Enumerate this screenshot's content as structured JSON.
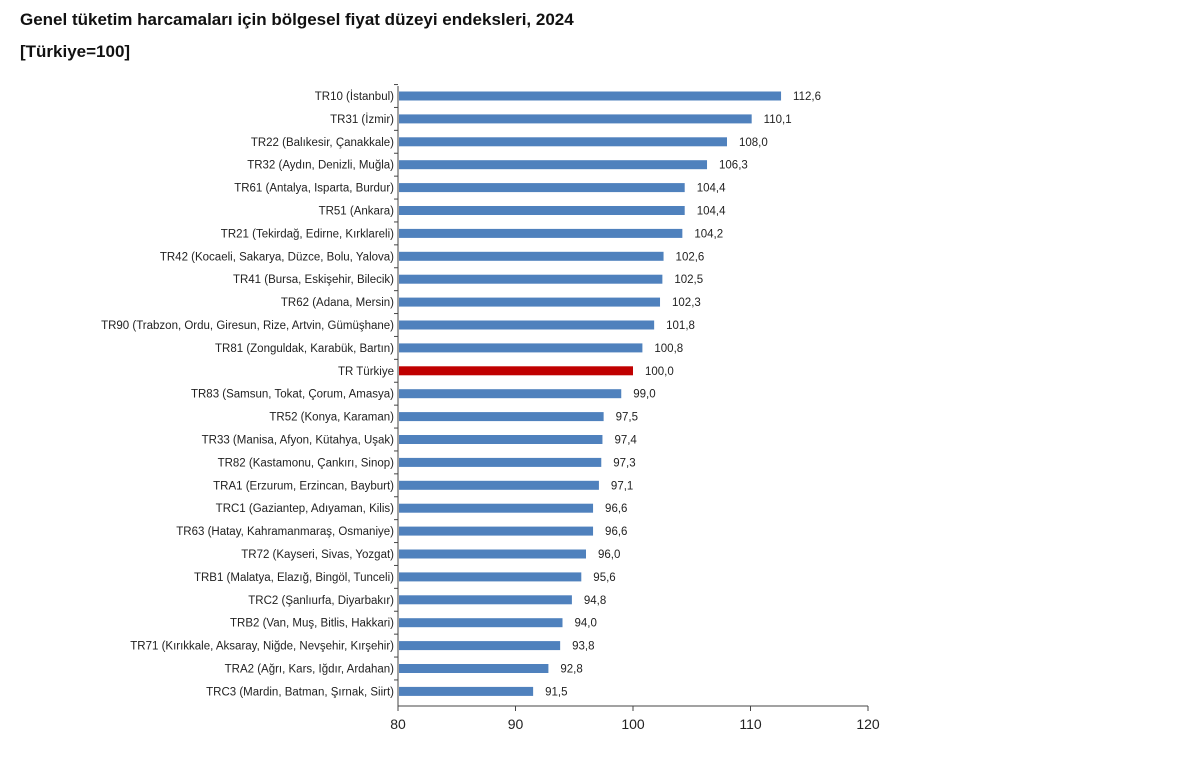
{
  "chart_data": {
    "type": "bar",
    "orientation": "horizontal",
    "title": "Genel tüketim harcamaları için bölgesel fiyat düzeyi endeksleri, 2024",
    "subtitle": "[Türkiye=100]",
    "xlabel": "",
    "ylabel": "",
    "xlim": [
      80,
      120
    ],
    "xticks": [
      80,
      90,
      100,
      110,
      120
    ],
    "grid": false,
    "colors": {
      "bar": "#4f81bd",
      "highlight": "#c00000"
    },
    "highlight_category": "TR Türkiye",
    "categories": [
      "TR10 (İstanbul)",
      "TR31 (İzmir)",
      "TR22 (Balıkesir, Çanakkale)",
      "TR32 (Aydın, Denizli, Muğla)",
      "TR61 (Antalya, Isparta, Burdur)",
      "TR51 (Ankara)",
      "TR21 (Tekirdağ, Edirne, Kırklareli)",
      "TR42 (Kocaeli, Sakarya, Düzce, Bolu, Yalova)",
      "TR41 (Bursa, Eskişehir, Bilecik)",
      "TR62 (Adana, Mersin)",
      "TR90 (Trabzon, Ordu, Giresun, Rize, Artvin, Gümüşhane)",
      "TR81 (Zonguldak, Karabük, Bartın)",
      "TR Türkiye",
      "TR83 (Samsun, Tokat, Çorum, Amasya)",
      "TR52 (Konya, Karaman)",
      "TR33 (Manisa, Afyon, Kütahya, Uşak)",
      "TR82 (Kastamonu, Çankırı, Sinop)",
      "TRA1 (Erzurum, Erzincan, Bayburt)",
      "TRC1 (Gaziantep, Adıyaman, Kilis)",
      "TR63 (Hatay, Kahramanmaraş, Osmaniye)",
      "TR72 (Kayseri, Sivas, Yozgat)",
      "TRB1 (Malatya, Elazığ, Bingöl, Tunceli)",
      "TRC2 (Şanlıurfa, Diyarbakır)",
      "TRB2 (Van, Muş, Bitlis, Hakkari)",
      "TR71 (Kırıkkale, Aksaray, Niğde, Nevşehir, Kırşehir)",
      "TRA2 (Ağrı, Kars, Iğdır, Ardahan)",
      "TRC3 (Mardin, Batman, Şırnak, Siirt)"
    ],
    "values": [
      112.6,
      110.1,
      108.0,
      106.3,
      104.4,
      104.4,
      104.2,
      102.6,
      102.5,
      102.3,
      101.8,
      100.8,
      100.0,
      99.0,
      97.5,
      97.4,
      97.3,
      97.1,
      96.6,
      96.6,
      96.0,
      95.6,
      94.8,
      94.0,
      93.8,
      92.8,
      91.5
    ],
    "data_labels": [
      "112,6",
      "110,1",
      "108,0",
      "106,3",
      "104,4",
      "104,4",
      "104,2",
      "102,6",
      "102,5",
      "102,3",
      "101,8",
      "100,8",
      "100,0",
      "99,0",
      "97,5",
      "97,4",
      "97,3",
      "97,1",
      "96,6",
      "96,6",
      "96,0",
      "95,6",
      "94,8",
      "94,0",
      "93,8",
      "92,8",
      "91,5"
    ]
  }
}
